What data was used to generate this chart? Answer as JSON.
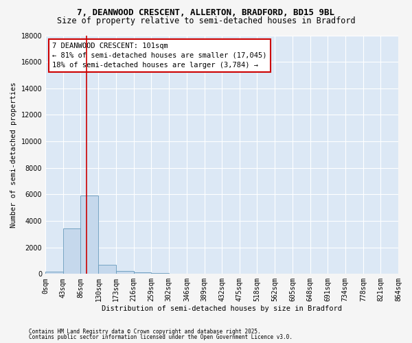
{
  "title_line1": "7, DEANWOOD CRESCENT, ALLERTON, BRADFORD, BD15 9BL",
  "title_line2": "Size of property relative to semi-detached houses in Bradford",
  "xlabel": "Distribution of semi-detached houses by size in Bradford",
  "ylabel": "Number of semi-detached properties",
  "annotation_title": "7 DEANWOOD CRESCENT: 101sqm",
  "annotation_line1": "← 81% of semi-detached houses are smaller (17,045)",
  "annotation_line2": "18% of semi-detached houses are larger (3,784) →",
  "footnote1": "Contains HM Land Registry data © Crown copyright and database right 2025.",
  "footnote2": "Contains public sector information licensed under the Open Government Licence v3.0.",
  "property_size": 101,
  "bin_edges": [
    0,
    43,
    86,
    130,
    173,
    216,
    259,
    302,
    346,
    389,
    432,
    475,
    518,
    562,
    605,
    648,
    691,
    734,
    778,
    821,
    864
  ],
  "bin_labels": [
    "0sqm",
    "43sqm",
    "86sqm",
    "130sqm",
    "173sqm",
    "216sqm",
    "259sqm",
    "302sqm",
    "346sqm",
    "389sqm",
    "432sqm",
    "475sqm",
    "518sqm",
    "562sqm",
    "605sqm",
    "648sqm",
    "691sqm",
    "734sqm",
    "778sqm",
    "821sqm",
    "864sqm"
  ],
  "bar_values": [
    150,
    3450,
    5900,
    700,
    200,
    100,
    50,
    5,
    0,
    0,
    0,
    0,
    0,
    0,
    0,
    0,
    0,
    0,
    0,
    0
  ],
  "bar_color": "#c5d8ec",
  "bar_edge_color": "#6699bb",
  "red_line_color": "#cc0000",
  "annotation_box_color": "#cc0000",
  "background_color": "#dce8f5",
  "fig_background": "#f5f5f5",
  "ylim": [
    0,
    18000
  ],
  "yticks": [
    0,
    2000,
    4000,
    6000,
    8000,
    10000,
    12000,
    14000,
    16000,
    18000
  ],
  "grid_color": "#ffffff",
  "title_fontsize": 9,
  "subtitle_fontsize": 8.5,
  "axis_label_fontsize": 7.5,
  "tick_fontsize": 7,
  "annotation_fontsize": 7.5,
  "footnote_fontsize": 5.5
}
